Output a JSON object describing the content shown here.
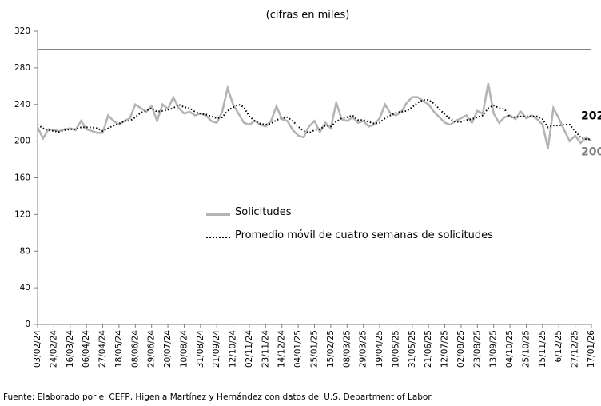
{
  "chart_data": {
    "type": "line",
    "subtitle": "(cifras en miles)",
    "source": "Fuente: Elaborado por el CEFP, Higenia Martínez y Hernández con datos del U.S. Department of Labor.",
    "categories": [
      "03/02/24",
      null,
      null,
      "24/02/24",
      null,
      null,
      "16/03/24",
      null,
      null,
      "06/04/24",
      null,
      null,
      "27/04/24",
      null,
      null,
      "18/05/24",
      null,
      null,
      "08/06/24",
      null,
      null,
      "29/06/24",
      null,
      null,
      "20/07/24",
      null,
      null,
      "10/08/24",
      null,
      null,
      "31/08/24",
      null,
      null,
      "21/09/24",
      null,
      null,
      "12/10/24",
      null,
      null,
      "02/11/24",
      null,
      null,
      "23/11/24",
      null,
      null,
      "14/12/24",
      null,
      null,
      "04/01/25",
      null,
      null,
      "25/01/25",
      null,
      null,
      "15/02/25",
      null,
      null,
      "08/03/25",
      null,
      null,
      "29/03/25",
      null,
      null,
      "19/04/25",
      null,
      null,
      "10/05/25",
      null,
      null,
      "31/05/25",
      null,
      null,
      "21/06/25",
      null,
      null,
      "12/07/25",
      null,
      null,
      "02/08/25",
      null,
      null,
      "23/08/25",
      null,
      null,
      "13/09/25",
      null,
      null,
      "04/10/25",
      null,
      null,
      "25/10/25",
      null,
      null,
      "15/11/25",
      null,
      null,
      "6/12/25",
      null,
      null,
      "27/12/25",
      null,
      null,
      "17/01/26"
    ],
    "series": [
      {
        "name": "Solicitudes",
        "color": "#b3b3b3",
        "style": "solid",
        "end_label": "200",
        "values": [
          215,
          203,
          213,
          212,
          211,
          213,
          214,
          212,
          222,
          213,
          211,
          209,
          209,
          228,
          222,
          218,
          222,
          225,
          240,
          236,
          232,
          238,
          222,
          240,
          235,
          248,
          236,
          230,
          232,
          228,
          230,
          228,
          222,
          220,
          232,
          258,
          240,
          230,
          220,
          218,
          222,
          218,
          216,
          222,
          238,
          224,
          222,
          212,
          206,
          204,
          216,
          222,
          210,
          220,
          214,
          242,
          224,
          222,
          226,
          220,
          222,
          216,
          218,
          225,
          240,
          230,
          228,
          232,
          242,
          248,
          248,
          244,
          240,
          232,
          226,
          220,
          218,
          222,
          225,
          228,
          220,
          233,
          230,
          263,
          230,
          220,
          226,
          228,
          224,
          232,
          225,
          228,
          224,
          218,
          192,
          236,
          225,
          212,
          200,
          206,
          198,
          204,
          200
        ]
      },
      {
        "name": "Promedio móvil de cuatro semanas de solicitudes",
        "color": "#000000",
        "style": "dotted",
        "end_label": "202",
        "values": [
          218,
          214,
          212,
          211,
          210,
          212,
          213,
          213,
          215,
          215,
          215,
          214,
          211,
          214,
          217,
          219,
          222,
          222,
          226,
          231,
          233,
          236,
          232,
          233,
          234,
          236,
          240,
          237,
          236,
          232,
          230,
          229,
          227,
          225,
          226,
          233,
          237,
          240,
          237,
          227,
          222,
          219,
          218,
          219,
          223,
          225,
          226,
          222,
          216,
          211,
          209,
          212,
          213,
          217,
          216,
          221,
          225,
          226,
          228,
          223,
          223,
          221,
          219,
          220,
          225,
          228,
          231,
          232,
          233,
          237,
          242,
          245,
          245,
          241,
          235,
          229,
          224,
          221,
          221,
          223,
          224,
          226,
          228,
          236,
          239,
          236,
          235,
          226,
          226,
          227,
          227,
          227,
          227,
          224,
          215,
          217,
          217,
          218,
          218,
          211,
          204,
          202,
          202
        ]
      }
    ],
    "reference_line": {
      "value": 300,
      "color": "#595959"
    },
    "ylim": [
      0,
      320
    ],
    "yticks": [
      0,
      40,
      80,
      120,
      160,
      200,
      240,
      280,
      320
    ],
    "grid": false
  }
}
